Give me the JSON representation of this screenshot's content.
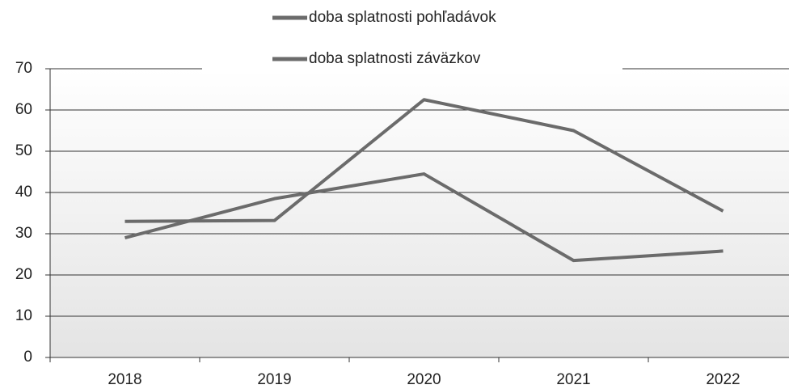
{
  "chart_data": {
    "type": "line",
    "categories": [
      "2018",
      "2019",
      "2020",
      "2021",
      "2022"
    ],
    "series": [
      {
        "name": "doba splatnosti pohľadávok",
        "color": "#6b6b6b",
        "values": [
          33,
          33.2,
          62.5,
          55,
          35.5
        ]
      },
      {
        "name": "doba splatnosti záväzkov",
        "color": "#6b6b6b",
        "values": [
          29,
          38.5,
          44.5,
          23.5,
          25.8
        ]
      }
    ],
    "ylim": [
      0,
      70
    ],
    "yticks": [
      0,
      10,
      20,
      30,
      40,
      50,
      60,
      70
    ],
    "grid": true,
    "legend": "top"
  }
}
